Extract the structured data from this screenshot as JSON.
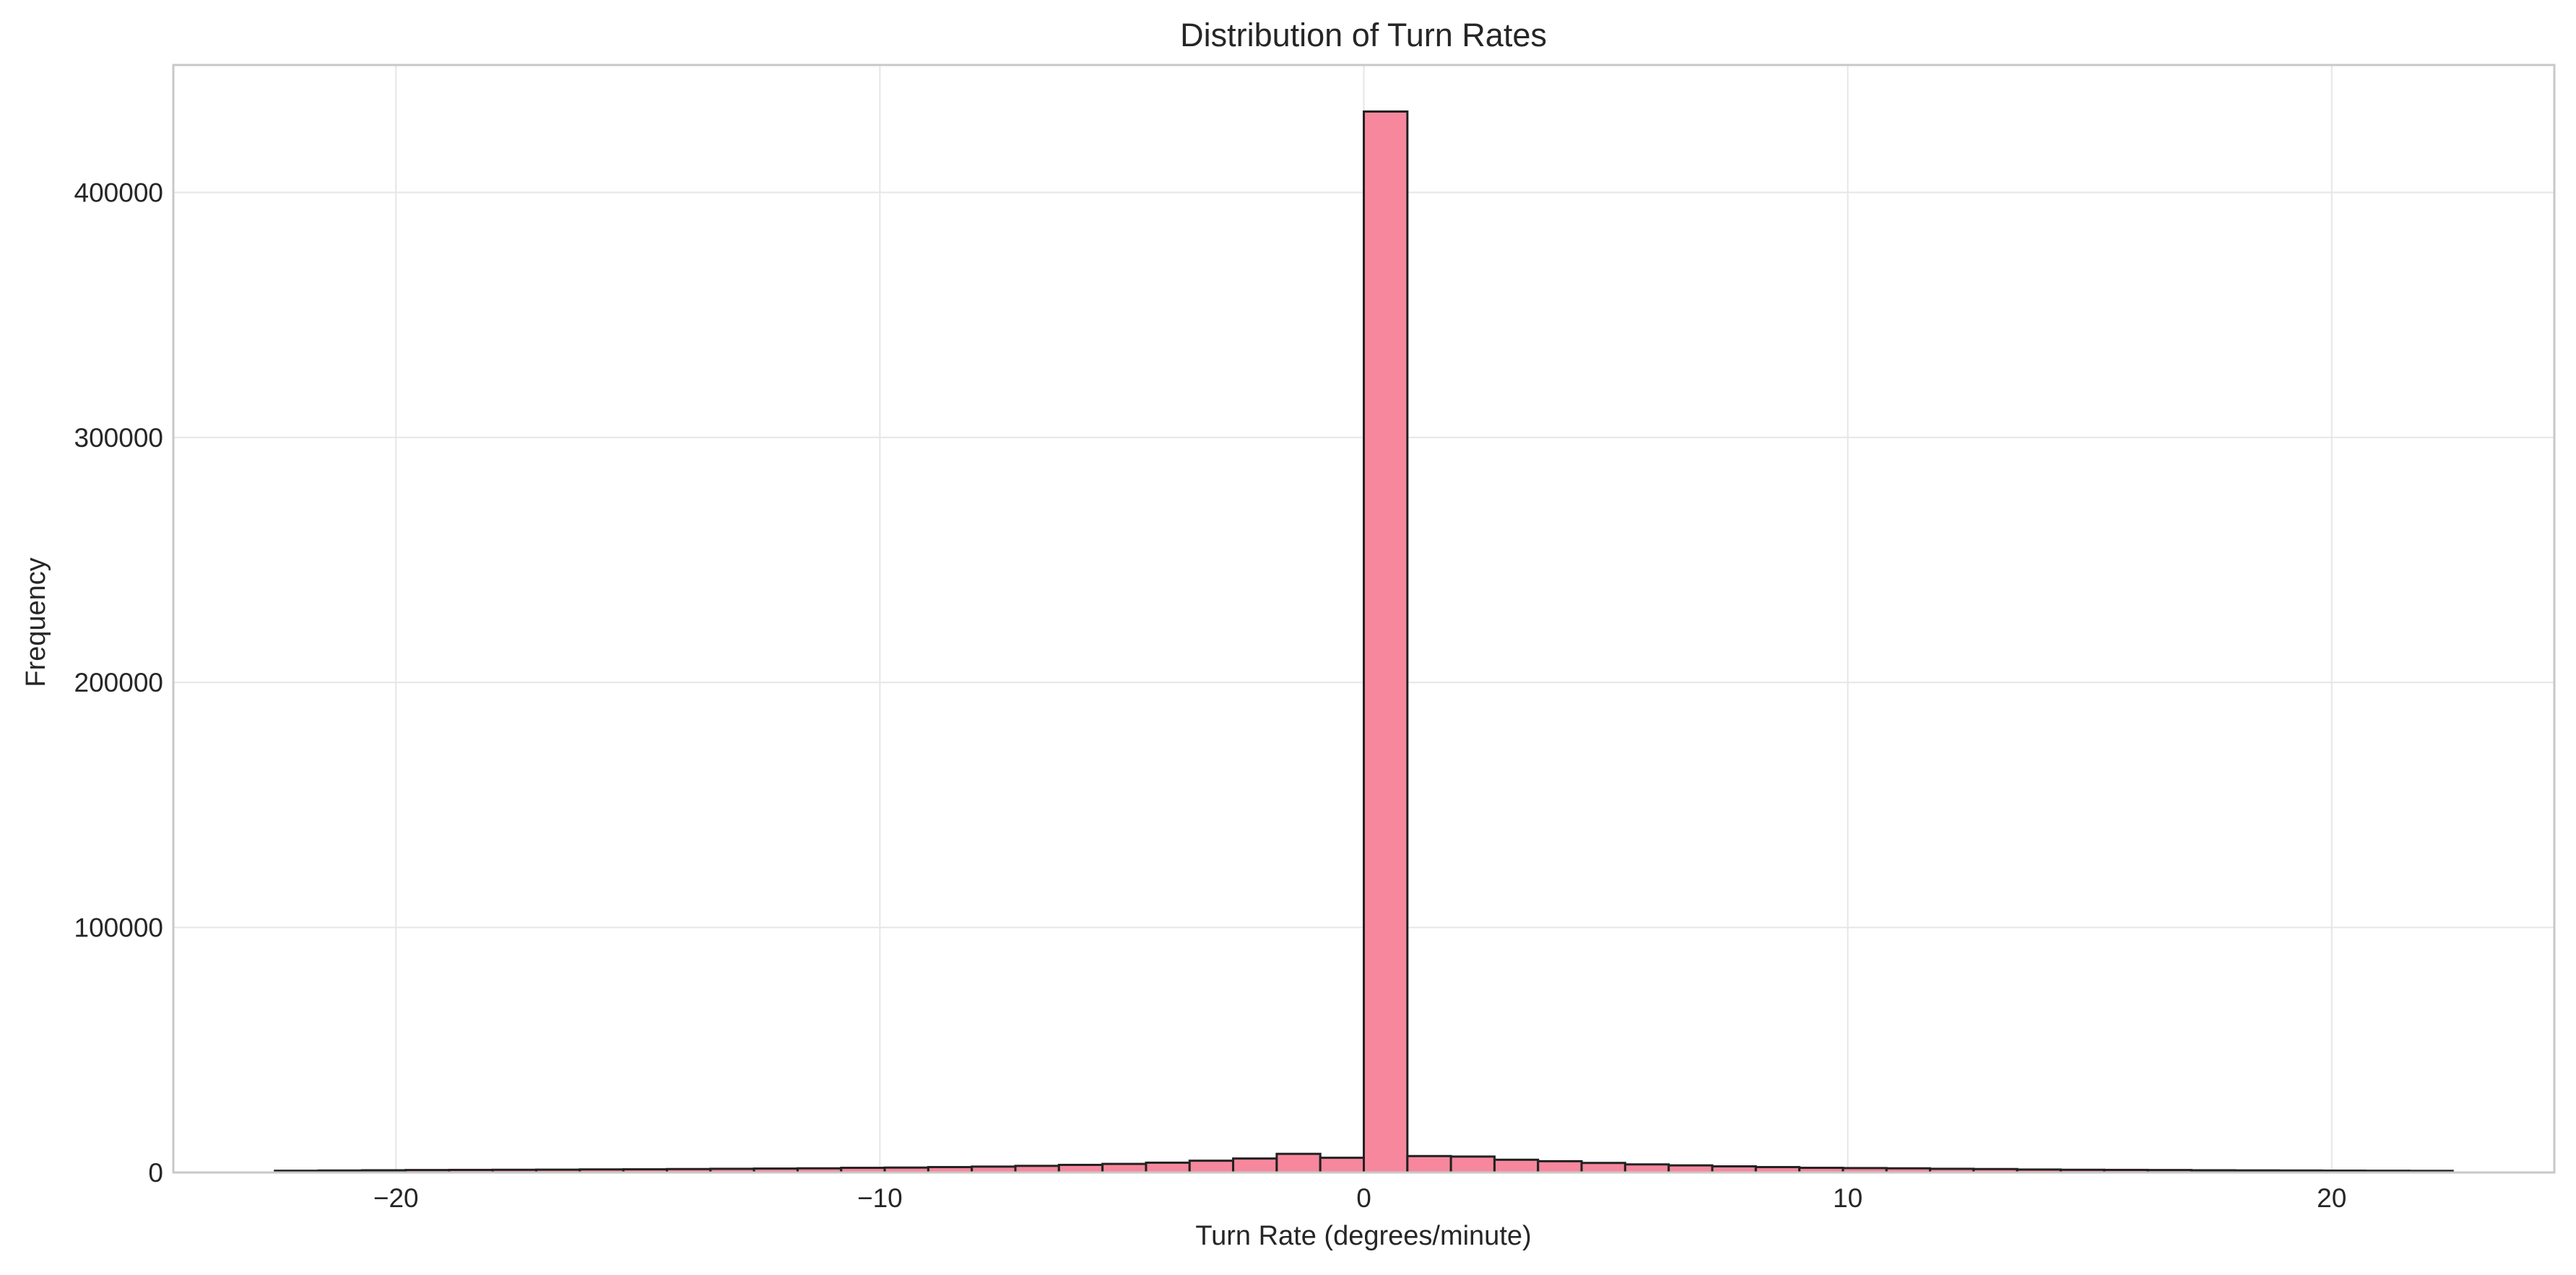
{
  "chart_data": {
    "type": "bar",
    "title": "Distribution of Turn Rates",
    "xlabel": "Turn Rate (degrees/minute)",
    "ylabel": "Frequency",
    "xlim": [
      -24.6,
      24.6
    ],
    "ylim": [
      0,
      452000
    ],
    "xticks": [
      -20,
      -10,
      0,
      10,
      20
    ],
    "xtick_labels": [
      "−20",
      "−10",
      "0",
      "10",
      "20"
    ],
    "yticks": [
      0,
      100000,
      200000,
      300000,
      400000
    ],
    "ytick_labels": [
      "0",
      "100000",
      "200000",
      "300000",
      "400000"
    ],
    "grid": true,
    "bar_color": "#f7879d",
    "edge_color": "#222222",
    "bin_edges": [
      -22.5,
      -21.6,
      -20.7,
      -19.8,
      -18.9,
      -18.0,
      -17.1,
      -16.2,
      -15.3,
      -14.4,
      -13.5,
      -12.6,
      -11.7,
      -10.8,
      -9.9,
      -9.0,
      -8.1,
      -7.2,
      -6.3,
      -5.4,
      -4.5,
      -3.6,
      -2.7,
      -1.8,
      -0.9,
      0.0,
      0.9,
      1.8,
      2.7,
      3.6,
      4.5,
      5.4,
      6.3,
      7.2,
      8.1,
      9.0,
      9.9,
      10.8,
      11.7,
      12.6,
      13.5,
      14.4,
      15.3,
      16.2,
      17.1,
      18.0,
      18.9,
      19.8,
      20.7,
      21.6,
      22.5
    ],
    "values": [
      700,
      800,
      900,
      1000,
      1050,
      1100,
      1150,
      1250,
      1300,
      1400,
      1500,
      1600,
      1700,
      1900,
      2000,
      2200,
      2400,
      2700,
      3100,
      3500,
      4000,
      4800,
      5700,
      7600,
      6000,
      433000,
      6700,
      6500,
      5200,
      4600,
      3900,
      3300,
      2900,
      2500,
      2200,
      1900,
      1800,
      1700,
      1500,
      1400,
      1200,
      1100,
      1050,
      1000,
      900,
      850,
      800,
      750,
      700,
      650
    ]
  }
}
